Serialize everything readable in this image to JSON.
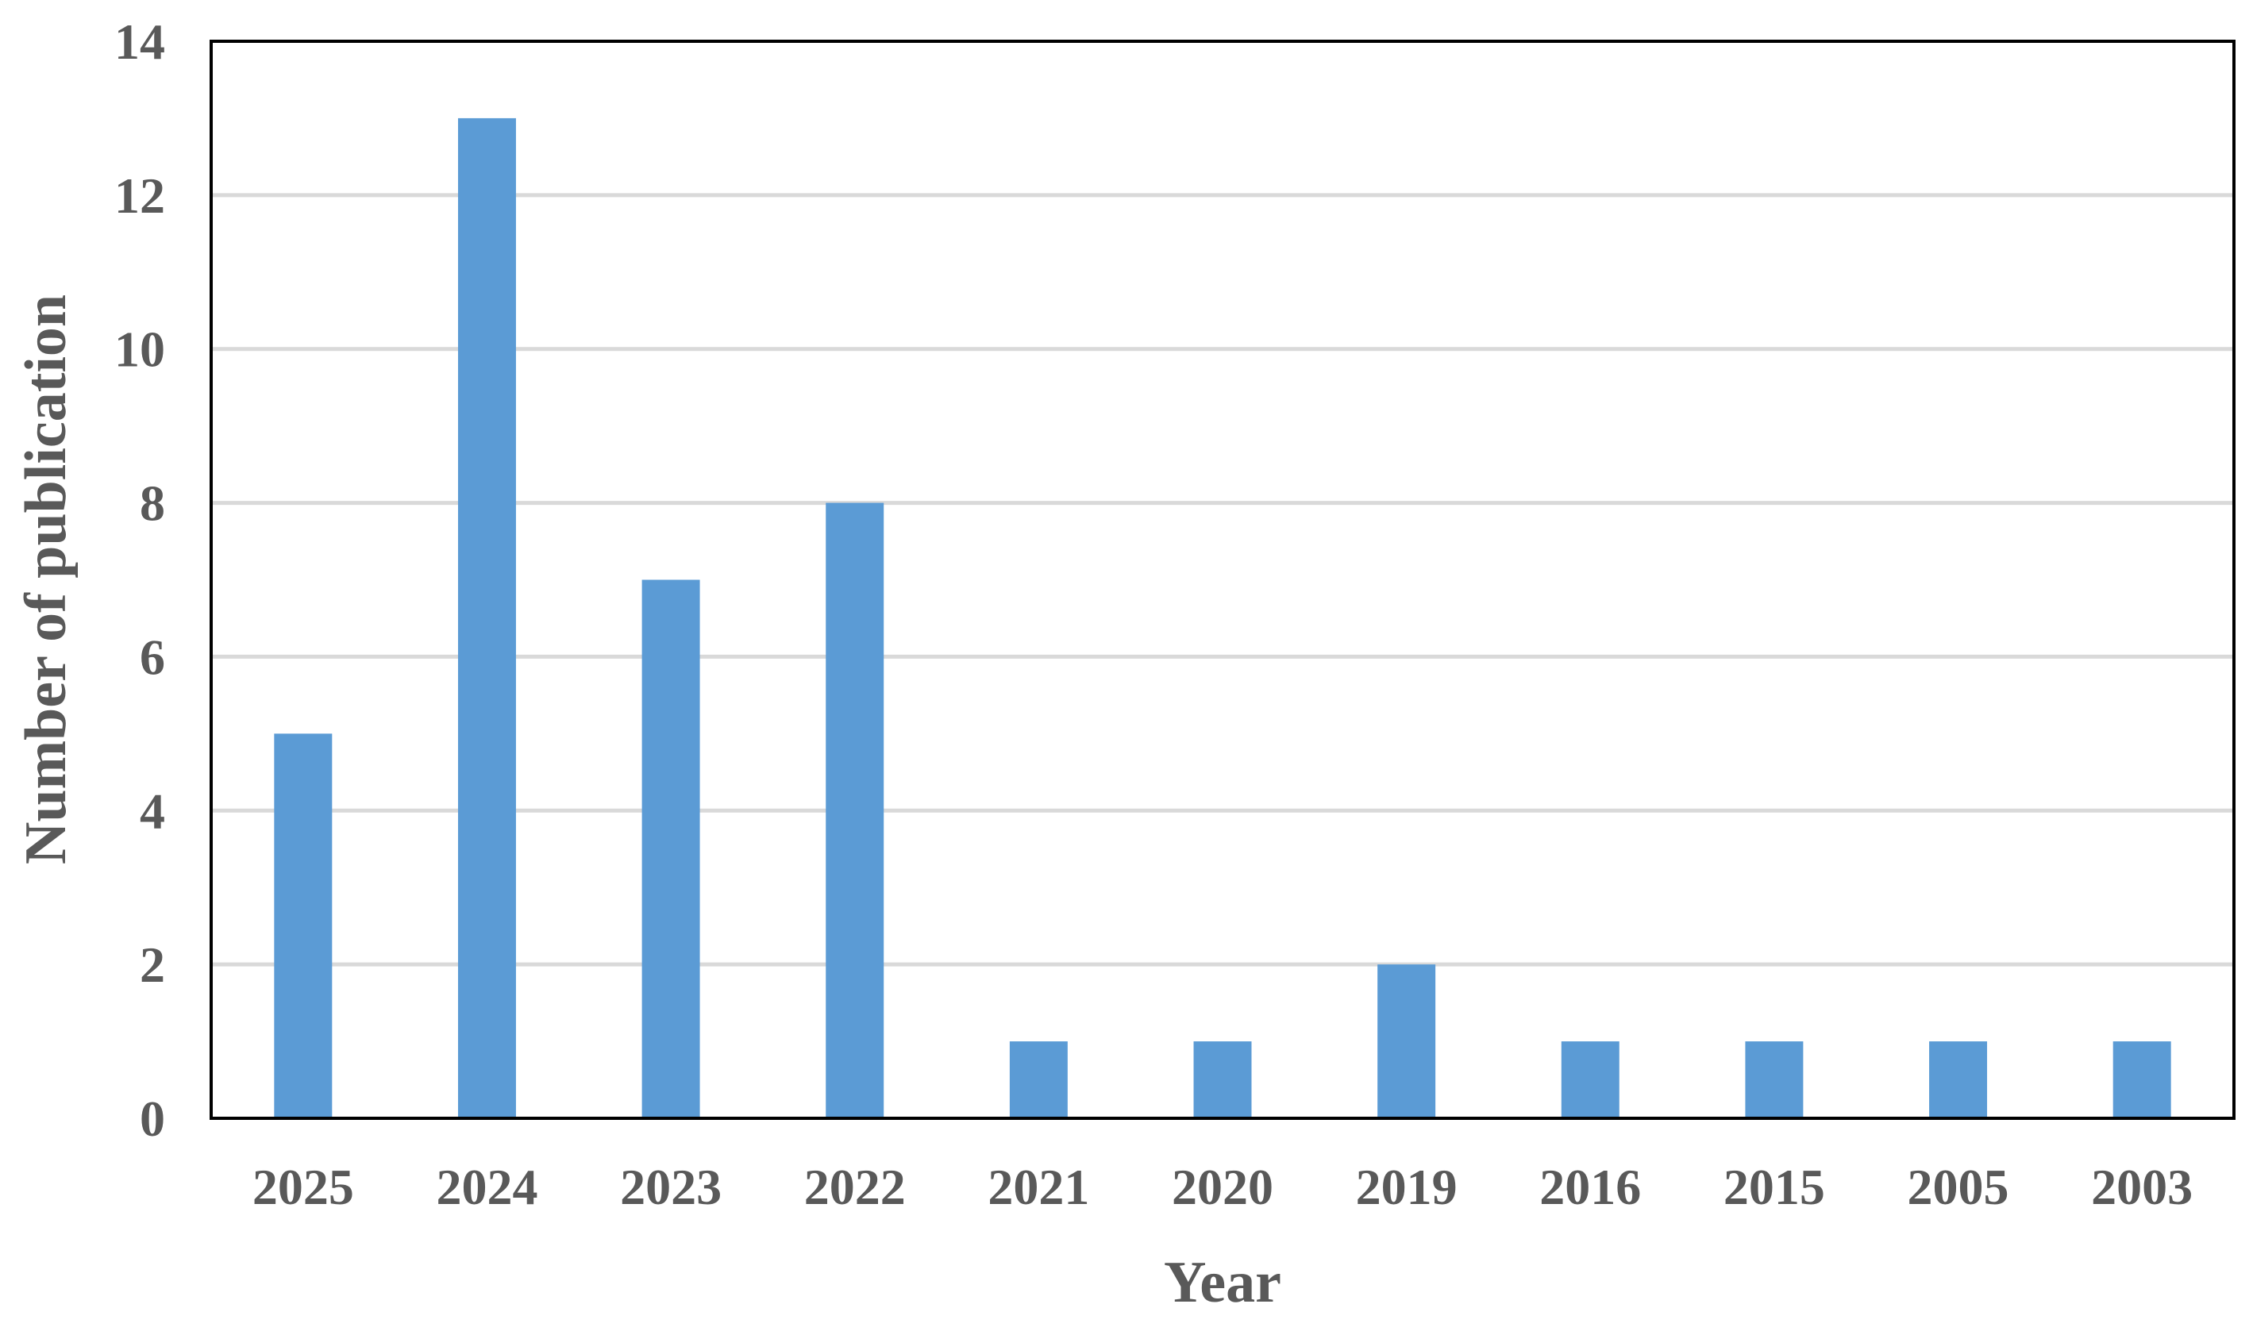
{
  "chart_data": {
    "type": "bar",
    "title": "",
    "xlabel": "Year",
    "ylabel": "Number of publication",
    "categories": [
      "2025",
      "2024",
      "2023",
      "2022",
      "2021",
      "2020",
      "2019",
      "2016",
      "2015",
      "2005",
      "2003"
    ],
    "values": [
      5,
      13,
      7,
      8,
      1,
      1,
      2,
      1,
      1,
      1,
      1
    ],
    "ylim": [
      0,
      14
    ],
    "yticks": [
      0,
      2,
      4,
      6,
      8,
      10,
      12,
      14
    ],
    "grid": true,
    "legend": "none",
    "colors": {
      "bar": "#5B9BD5",
      "grid": "#D9D9D9",
      "frame": "#000000",
      "text": "#595959"
    }
  }
}
